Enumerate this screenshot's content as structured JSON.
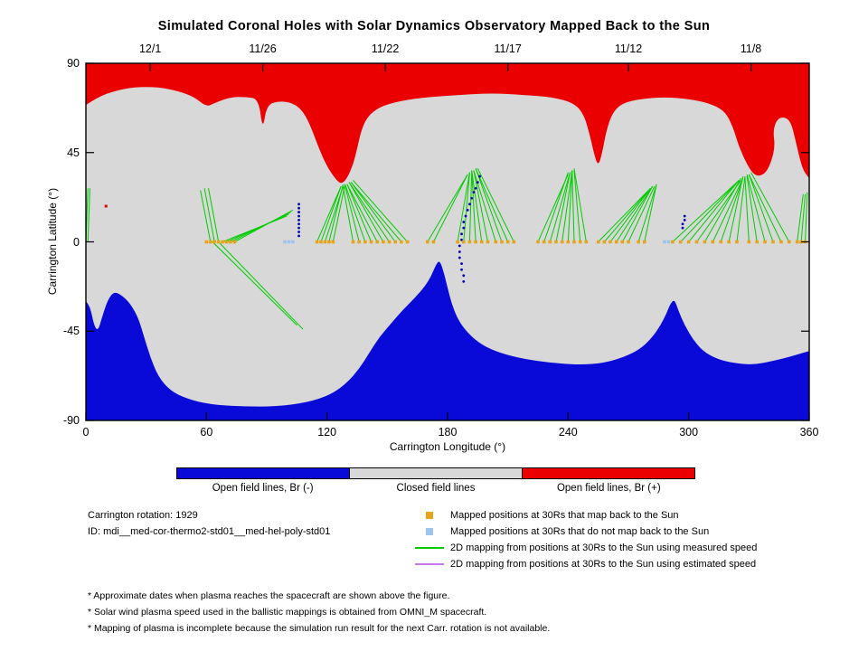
{
  "title": "Simulated Coronal Holes with Solar Dynamics Observatory Mapped Back to the Sun",
  "axes": {
    "x_label": "Carrington Longitude (°)",
    "y_label": "Carrington Latitude (°)",
    "x_ticks": [
      {
        "value": 0,
        "label": "0"
      },
      {
        "value": 60,
        "label": "60"
      },
      {
        "value": 120,
        "label": "120"
      },
      {
        "value": 180,
        "label": "180"
      },
      {
        "value": 240,
        "label": "240"
      },
      {
        "value": 300,
        "label": "300"
      },
      {
        "value": 360,
        "label": "360"
      }
    ],
    "y_ticks": [
      {
        "value": 90,
        "label": "90"
      },
      {
        "value": 45,
        "label": "45"
      },
      {
        "value": 0,
        "label": "0"
      },
      {
        "value": -45,
        "label": "-45"
      },
      {
        "value": -90,
        "label": "-90"
      }
    ],
    "top_ticks": [
      {
        "value": 32,
        "label": "12/1"
      },
      {
        "value": 88,
        "label": "11/26"
      },
      {
        "value": 149,
        "label": "11/22"
      },
      {
        "value": 210,
        "label": "11/17"
      },
      {
        "value": 270,
        "label": "11/12"
      },
      {
        "value": 331,
        "label": "11/8"
      }
    ]
  },
  "colorbar": {
    "segments": [
      {
        "label": "Open field lines, Br (-)",
        "color": "#0a0ad8"
      },
      {
        "label": "Closed field lines",
        "color": "#d8d8d8"
      },
      {
        "label": "Open field lines, Br (+)",
        "color": "#ea0000"
      }
    ]
  },
  "info": {
    "rotation": "Carrington rotation: 1929",
    "id": "ID: mdi__med-cor-thermo2-std01__med-hel-poly-std01"
  },
  "legend": [
    {
      "swatch": "square",
      "color": "#e6a419",
      "label": "Mapped positions at 30Rs that map back to the Sun"
    },
    {
      "swatch": "square",
      "color": "#9dc4ed",
      "label": "Mapped positions at 30Rs that do not map back to the Sun"
    },
    {
      "swatch": "line",
      "color": "#00cc00",
      "label": "2D mapping from positions at 30Rs to the Sun using measured speed"
    },
    {
      "swatch": "line",
      "color": "#c678e6",
      "label": "2D mapping from positions at 30Rs to the Sun using estimated speed"
    }
  ],
  "footnotes": [
    "* Approximate dates when plasma reaches the spacecraft are shown above the figure.",
    "* Solar wind plasma speed used in the ballistic mappings is obtained from OMNI_M spacecraft.",
    "* Mapping of plasma is incomplete because the simulation run result for the next Carr. rotation is not available."
  ],
  "chart_data": {
    "type": "area",
    "subtype": "solar-synoptic-map",
    "title": "Simulated Coronal Holes with Solar Dynamics Observatory Mapped Back to the Sun",
    "xlabel": "Carrington Longitude (°)",
    "ylabel": "Carrington Latitude (°)",
    "xlim": [
      0,
      360
    ],
    "ylim": [
      -90,
      90
    ],
    "colors": {
      "closed": "#d8d8d8",
      "positive": "#ea0000",
      "negative": "#0a0ad8",
      "measured_line": "#00cc00",
      "estimated_line": "#c678e6",
      "mapped_point": "#e6a419",
      "unmapped_point": "#9dc4ed",
      "track": "#0000b4"
    },
    "regions": {
      "positive_boundary": [
        [
          0,
          69
        ],
        [
          6,
          73
        ],
        [
          14,
          76
        ],
        [
          24,
          78
        ],
        [
          36,
          78
        ],
        [
          46,
          76
        ],
        [
          54,
          73
        ],
        [
          60,
          68
        ],
        [
          64,
          70
        ],
        [
          72,
          73
        ],
        [
          80,
          73
        ],
        [
          86,
          72
        ],
        [
          88,
          56
        ],
        [
          90,
          69
        ],
        [
          96,
          71
        ],
        [
          103,
          70
        ],
        [
          108,
          66
        ],
        [
          112,
          58
        ],
        [
          116,
          47
        ],
        [
          120,
          38
        ],
        [
          124,
          32
        ],
        [
          127,
          29
        ],
        [
          130,
          32
        ],
        [
          133,
          39
        ],
        [
          135,
          47
        ],
        [
          137,
          56
        ],
        [
          140,
          63
        ],
        [
          146,
          68
        ],
        [
          156,
          71
        ],
        [
          170,
          73
        ],
        [
          186,
          74
        ],
        [
          202,
          75
        ],
        [
          218,
          74
        ],
        [
          232,
          73
        ],
        [
          243,
          70
        ],
        [
          248,
          64
        ],
        [
          251,
          53
        ],
        [
          253,
          44
        ],
        [
          255,
          38
        ],
        [
          257,
          45
        ],
        [
          259,
          56
        ],
        [
          262,
          65
        ],
        [
          267,
          70
        ],
        [
          276,
          72
        ],
        [
          288,
          73
        ],
        [
          300,
          72
        ],
        [
          310,
          70
        ],
        [
          318,
          66
        ],
        [
          322,
          58
        ],
        [
          325,
          48
        ],
        [
          329,
          39
        ],
        [
          333,
          33
        ],
        [
          338,
          34
        ],
        [
          341,
          40
        ],
        [
          343,
          48
        ],
        [
          342,
          56
        ],
        [
          344,
          62
        ],
        [
          348,
          63
        ],
        [
          351,
          60
        ],
        [
          353,
          52
        ],
        [
          355,
          43
        ],
        [
          357,
          36
        ],
        [
          360,
          32
        ]
      ],
      "negative_boundary": [
        [
          0,
          -30
        ],
        [
          2,
          -32
        ],
        [
          4,
          -42
        ],
        [
          6,
          -45
        ],
        [
          8,
          -38
        ],
        [
          11,
          -29
        ],
        [
          14,
          -25
        ],
        [
          18,
          -27
        ],
        [
          22,
          -31
        ],
        [
          26,
          -38
        ],
        [
          29,
          -48
        ],
        [
          32,
          -58
        ],
        [
          36,
          -68
        ],
        [
          42,
          -75
        ],
        [
          50,
          -79
        ],
        [
          62,
          -82
        ],
        [
          78,
          -83
        ],
        [
          95,
          -83
        ],
        [
          110,
          -81
        ],
        [
          122,
          -77
        ],
        [
          130,
          -71
        ],
        [
          136,
          -64
        ],
        [
          141,
          -56
        ],
        [
          146,
          -48
        ],
        [
          152,
          -41
        ],
        [
          158,
          -34
        ],
        [
          164,
          -28
        ],
        [
          169,
          -22
        ],
        [
          172,
          -17
        ],
        [
          174,
          -12
        ],
        [
          176,
          -9
        ],
        [
          178,
          -15
        ],
        [
          180,
          -23
        ],
        [
          182,
          -31
        ],
        [
          185,
          -39
        ],
        [
          190,
          -46
        ],
        [
          197,
          -52
        ],
        [
          206,
          -56
        ],
        [
          218,
          -59
        ],
        [
          232,
          -61
        ],
        [
          246,
          -62
        ],
        [
          258,
          -61
        ],
        [
          268,
          -58
        ],
        [
          276,
          -54
        ],
        [
          282,
          -48
        ],
        [
          286,
          -42
        ],
        [
          289,
          -36
        ],
        [
          291,
          -31
        ],
        [
          293,
          -29
        ],
        [
          295,
          -35
        ],
        [
          298,
          -42
        ],
        [
          302,
          -49
        ],
        [
          307,
          -55
        ],
        [
          314,
          -59
        ],
        [
          322,
          -61
        ],
        [
          332,
          -62
        ],
        [
          342,
          -60
        ],
        [
          350,
          -58
        ],
        [
          360,
          -55
        ]
      ]
    },
    "red_specks": [
      [
        10,
        18
      ]
    ],
    "green_lines": [
      [
        62,
        0,
        57,
        26
      ],
      [
        64,
        0,
        59,
        27
      ],
      [
        66,
        0,
        61,
        27
      ],
      [
        68,
        0,
        100,
        13
      ],
      [
        70,
        0,
        101,
        14
      ],
      [
        72,
        0,
        102,
        15
      ],
      [
        74,
        0,
        103,
        16
      ],
      [
        63,
        0,
        105,
        -42
      ],
      [
        66,
        0,
        108,
        -44
      ],
      [
        0,
        0,
        1,
        27
      ],
      [
        1,
        0,
        2,
        27
      ],
      [
        115,
        0,
        127,
        28
      ],
      [
        117,
        0,
        127,
        28
      ],
      [
        119,
        0,
        128,
        28
      ],
      [
        121,
        0,
        128,
        29
      ],
      [
        123,
        0,
        129,
        29
      ],
      [
        133,
        0,
        128,
        28
      ],
      [
        136,
        0,
        129,
        28
      ],
      [
        139,
        0,
        129,
        29
      ],
      [
        142,
        0,
        130,
        29
      ],
      [
        145,
        0,
        130,
        29
      ],
      [
        148,
        0,
        131,
        30
      ],
      [
        151,
        0,
        131,
        30
      ],
      [
        154,
        0,
        132,
        30
      ],
      [
        157,
        0,
        132,
        30
      ],
      [
        160,
        0,
        133,
        31
      ],
      [
        170,
        0,
        190,
        34
      ],
      [
        173,
        0,
        190,
        34
      ],
      [
        185,
        0,
        191,
        35
      ],
      [
        188,
        0,
        191,
        35
      ],
      [
        191,
        0,
        192,
        35
      ],
      [
        194,
        0,
        192,
        36
      ],
      [
        197,
        0,
        192,
        36
      ],
      [
        200,
        0,
        193,
        36
      ],
      [
        204,
        0,
        193,
        36
      ],
      [
        207,
        0,
        194,
        37
      ],
      [
        210,
        0,
        194,
        37
      ],
      [
        213,
        0,
        195,
        37
      ],
      [
        225,
        0,
        240,
        34
      ],
      [
        228,
        0,
        240,
        35
      ],
      [
        231,
        0,
        241,
        35
      ],
      [
        234,
        0,
        241,
        35
      ],
      [
        237,
        0,
        242,
        36
      ],
      [
        240,
        0,
        242,
        36
      ],
      [
        243,
        0,
        242,
        36
      ],
      [
        246,
        0,
        243,
        36
      ],
      [
        249,
        0,
        243,
        37
      ],
      [
        255,
        0,
        280,
        26
      ],
      [
        258,
        0,
        281,
        27
      ],
      [
        261,
        0,
        281,
        27
      ],
      [
        264,
        0,
        282,
        28
      ],
      [
        267,
        0,
        282,
        28
      ],
      [
        270,
        0,
        283,
        28
      ],
      [
        275,
        0,
        284,
        29
      ],
      [
        278,
        0,
        284,
        29
      ],
      [
        292,
        0,
        324,
        30
      ],
      [
        296,
        0,
        325,
        31
      ],
      [
        300,
        0,
        325,
        31
      ],
      [
        304,
        0,
        326,
        31
      ],
      [
        308,
        0,
        326,
        32
      ],
      [
        312,
        0,
        327,
        32
      ],
      [
        316,
        0,
        327,
        32
      ],
      [
        320,
        0,
        327,
        33
      ],
      [
        324,
        0,
        328,
        33
      ],
      [
        330,
        0,
        328,
        33
      ],
      [
        334,
        0,
        329,
        33
      ],
      [
        338,
        0,
        329,
        34
      ],
      [
        342,
        0,
        330,
        34
      ],
      [
        346,
        0,
        330,
        34
      ],
      [
        350,
        0,
        331,
        35
      ],
      [
        354,
        0,
        357,
        24
      ],
      [
        356,
        0,
        358,
        24
      ],
      [
        358,
        0,
        359,
        25
      ]
    ],
    "purple_lines": [],
    "mapped_point_lons": [
      60,
      62,
      64,
      66,
      68,
      70,
      72,
      74,
      115,
      117,
      119,
      121,
      123,
      133,
      136,
      139,
      142,
      145,
      148,
      151,
      154,
      157,
      160,
      170,
      173,
      185,
      188,
      191,
      194,
      197,
      200,
      204,
      207,
      210,
      213,
      225,
      228,
      231,
      234,
      237,
      240,
      243,
      246,
      249,
      255,
      258,
      261,
      264,
      267,
      270,
      275,
      278,
      292,
      296,
      300,
      304,
      308,
      312,
      316,
      320,
      324,
      330,
      334,
      338,
      342,
      346,
      350,
      354,
      356,
      358
    ],
    "unmapped_point_lons": [
      99,
      101,
      103,
      288,
      290
    ],
    "spacecraft_tracks": [
      [
        [
          106,
          3
        ],
        [
          106,
          5
        ],
        [
          106,
          7
        ],
        [
          106,
          9
        ],
        [
          106,
          11
        ],
        [
          106,
          13
        ],
        [
          106,
          15
        ],
        [
          106,
          17
        ],
        [
          106,
          19
        ]
      ],
      [
        [
          196,
          33
        ],
        [
          195,
          30
        ],
        [
          194,
          27
        ],
        [
          193,
          25
        ],
        [
          192,
          22
        ],
        [
          191,
          19
        ],
        [
          190,
          16
        ],
        [
          189,
          13
        ],
        [
          188,
          10
        ],
        [
          188,
          7
        ],
        [
          187,
          4
        ],
        [
          187,
          1
        ],
        [
          186,
          -2
        ],
        [
          186,
          -5
        ],
        [
          186,
          -8
        ],
        [
          187,
          -11
        ],
        [
          187,
          -14
        ],
        [
          188,
          -17
        ],
        [
          188,
          -20
        ]
      ],
      [
        [
          297,
          7
        ],
        [
          297,
          9
        ],
        [
          298,
          11
        ],
        [
          298,
          13
        ]
      ]
    ]
  }
}
